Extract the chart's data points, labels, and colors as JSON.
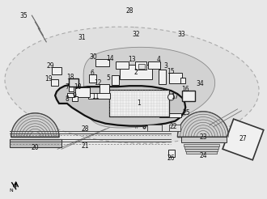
{
  "figsize": [
    3.3,
    2.46
  ],
  "dpi": 100,
  "bg": "#e8e8e8",
  "rock_fc": "#d0d0d0",
  "rock_ec": "#888888",
  "wall_fc": "#c8c8c8",
  "wall_ec": "#111111",
  "bld_fc": "#f0f0f0",
  "bld_ec": "#222222",
  "parthenon_fc": "#e8e8e8",
  "theatre_fc": "#d5d5d5",
  "outer_ec": "#aaaaaa",
  "label_fs": 5.5,
  "tc": "#111111",
  "lw_wall": 1.6,
  "lw_bld": 0.7
}
